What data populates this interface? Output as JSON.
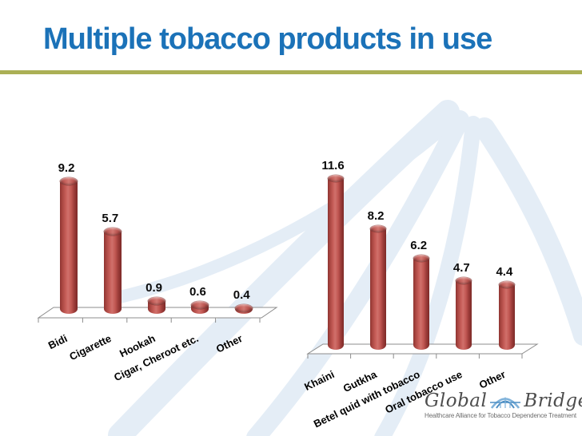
{
  "slide": {
    "title": "Multiple tobacco products in use",
    "colors": {
      "title": "#1B72B8",
      "rule": "#ABB055",
      "bar": "#C0504D",
      "watermark": "#E4EDF6",
      "floor": "#FFFFFF",
      "axis": "#8C8C8C"
    }
  },
  "chart_data": [
    {
      "type": "bar",
      "variant": "3d-cylinder",
      "title": "",
      "categories": [
        "Bidi",
        "Cigarette",
        "Hookah",
        "Cigar, Cheroot etc.",
        "Other"
      ],
      "values": [
        9.2,
        5.7,
        0.9,
        0.6,
        0.4
      ],
      "data_labels": [
        "9.2",
        "5.7",
        "0.9",
        "0.6",
        "0.4"
      ],
      "xlabel": "",
      "ylabel": "",
      "ylim": [
        0,
        10
      ],
      "grid": false,
      "legend": "none",
      "bar_color": "#C0504D"
    },
    {
      "type": "bar",
      "variant": "3d-cylinder",
      "title": "",
      "categories": [
        "Khaini",
        "Gutkha",
        "Betel quid with tobacco",
        "Oral tobacco use",
        "Other"
      ],
      "values": [
        11.6,
        8.2,
        6.2,
        4.7,
        4.4
      ],
      "data_labels": [
        "11.6",
        "8.2",
        "6.2",
        "4.7",
        "4.4"
      ],
      "xlabel": "",
      "ylabel": "",
      "ylim": [
        0,
        12
      ],
      "grid": false,
      "legend": "none",
      "bar_color": "#C0504D"
    }
  ],
  "logo": {
    "brand_left": "Global",
    "brand_right": "Bridges",
    "tagline": "Healthcare Alliance for Tobacco Dependence Treatment"
  }
}
